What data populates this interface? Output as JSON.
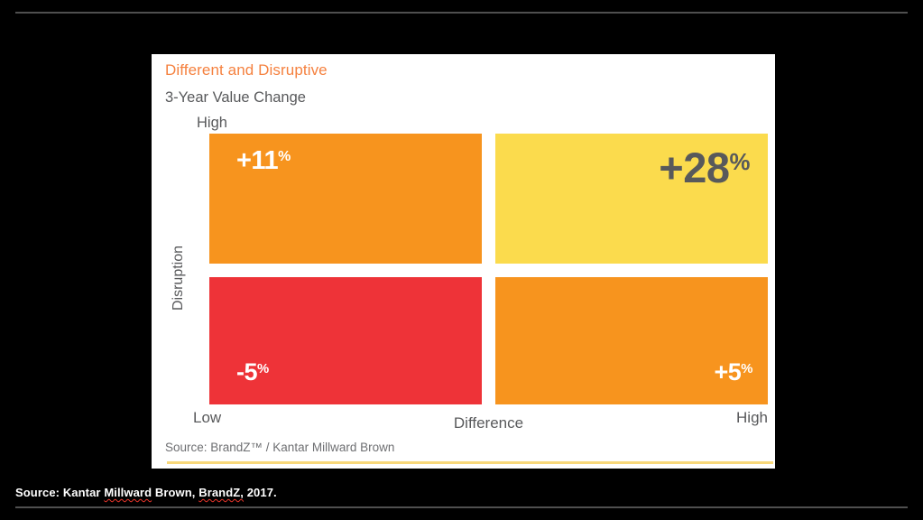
{
  "page": {
    "background": "#000000",
    "rule_color": "#4F4F4F"
  },
  "chart": {
    "title": "Different and Disruptive",
    "title_color": "#F5813F",
    "subtitle": "3-Year Value Change",
    "text_color": "#58595B",
    "y_axis_high": "High",
    "y_axis_label": "Disruption",
    "x_axis_low": "Low",
    "x_axis_label": "Difference",
    "x_axis_high": "High",
    "source": "Source: BrandZ™ / Kantar Millward Brown",
    "accent_rule_color": "#F8D87A",
    "quadrants": [
      {
        "id": "top-left",
        "num": "+11",
        "pct": "%",
        "bg": "#F7941E",
        "text_color": "#FFFFFF"
      },
      {
        "id": "top-right",
        "num": "+28",
        "pct": "%",
        "bg": "#FBDB4D",
        "text_color": "#58595B"
      },
      {
        "id": "bottom-left",
        "num": "-5",
        "pct": "%",
        "bg": "#EE3338",
        "text_color": "#FFFFFF"
      },
      {
        "id": "bottom-right",
        "num": "+5",
        "pct": "%",
        "bg": "#F7941E",
        "text_color": "#FFFFFF"
      }
    ]
  },
  "caption": {
    "segments": [
      {
        "text": "Source: Kantar ",
        "misspelled": false
      },
      {
        "text": "Millward",
        "misspelled": true
      },
      {
        "text": " Brown, ",
        "misspelled": false
      },
      {
        "text": "BrandZ,",
        "misspelled": true
      },
      {
        "text": " 2017.",
        "misspelled": false
      }
    ]
  },
  "chart_data": {
    "type": "heatmap",
    "title": "Different and Disruptive",
    "subtitle": "3-Year Value Change",
    "xlabel": "Difference",
    "ylabel": "Disruption",
    "x_categories": [
      "Low",
      "High"
    ],
    "y_categories": [
      "Low",
      "High"
    ],
    "cells": [
      {
        "x": "Low",
        "y": "High",
        "value_pct": 11,
        "label": "+11%",
        "color": "#F7941E"
      },
      {
        "x": "High",
        "y": "High",
        "value_pct": 28,
        "label": "+28%",
        "color": "#FBDB4D"
      },
      {
        "x": "Low",
        "y": "Low",
        "value_pct": -5,
        "label": "-5%",
        "color": "#EE3338"
      },
      {
        "x": "High",
        "y": "Low",
        "value_pct": 5,
        "label": "+5%",
        "color": "#F7941E"
      }
    ],
    "legend": "none",
    "grid": "off",
    "source": "Source: BrandZ™ / Kantar Millward Brown"
  }
}
